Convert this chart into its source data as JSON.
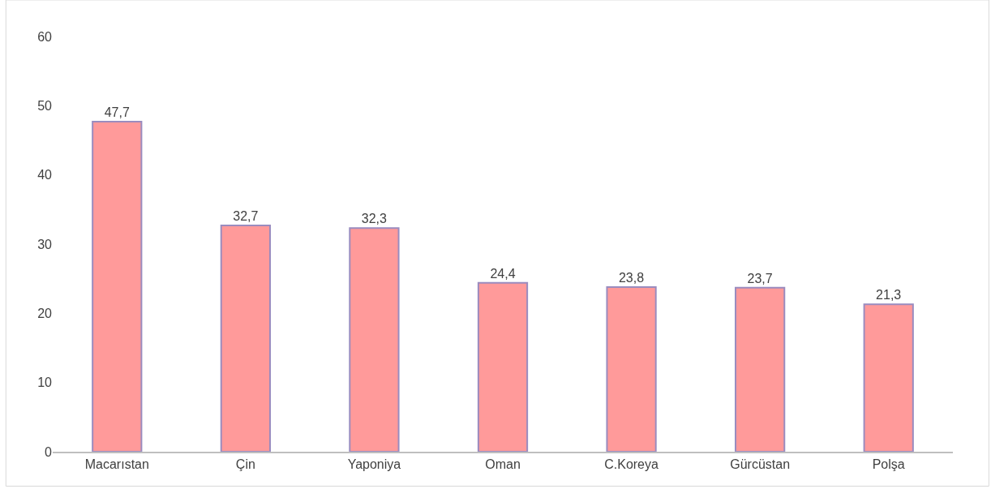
{
  "chart_data": {
    "type": "bar",
    "categories": [
      "Macarıstan",
      "Çin",
      "Yaponiya",
      "Oman",
      "C.Koreya",
      "Gürcüstan",
      "Polşa"
    ],
    "values": [
      47.7,
      32.7,
      32.3,
      24.4,
      23.8,
      23.7,
      21.3
    ],
    "value_labels": [
      "47,7",
      "32,7",
      "32,3",
      "24,4",
      "23,8",
      "23,7",
      "21,3"
    ],
    "color": "#ff9a9a",
    "ylim": [
      0,
      60
    ],
    "yticks": [
      0,
      10,
      20,
      30,
      40,
      50,
      60
    ]
  }
}
